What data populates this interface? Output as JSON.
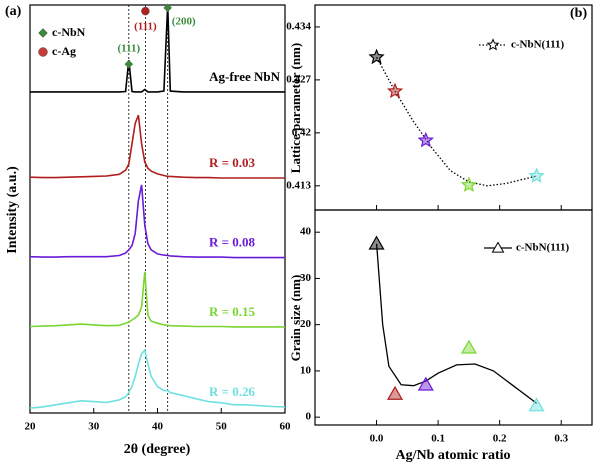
{
  "chart_data": [
    {
      "type": "line",
      "panel_label": "(a)",
      "xlabel": "2θ (degree)",
      "ylabel": "Intensity (a.u.)",
      "xlim": [
        20,
        60
      ],
      "xticks": [
        20,
        30,
        40,
        50,
        60
      ],
      "ylim": [
        0,
        100
      ],
      "x": [
        20,
        22,
        24,
        26,
        28,
        30,
        32,
        34,
        35,
        35.5,
        36,
        36.5,
        37,
        37.5,
        38,
        38.5,
        39,
        40,
        41,
        41.6,
        42,
        44,
        46,
        48,
        50,
        52,
        54,
        56,
        58,
        60
      ],
      "series": [
        {
          "name": "Ag-free NbN",
          "color": "#000000",
          "values": [
            78.7,
            78.7,
            78.7,
            78.7,
            78.7,
            78.7,
            78.7,
            78.7,
            78.8,
            86.5,
            78.8,
            78.7,
            78.7,
            78.7,
            79.3,
            78.7,
            78.7,
            78.7,
            78.9,
            100,
            78.9,
            78.7,
            78.7,
            78.7,
            78.7,
            78.7,
            78.7,
            78.7,
            78.7,
            78.7
          ]
        },
        {
          "name": "R = 0.03",
          "color": "#b01e1e",
          "values": [
            57.8,
            57.7,
            57.7,
            57.8,
            57.9,
            58,
            58.1,
            58.5,
            59.5,
            61,
            66,
            71,
            73,
            66,
            61.5,
            60,
            59.3,
            58.6,
            58.2,
            58,
            58,
            57.8,
            57.7,
            57.7,
            57.6,
            57.6,
            57.6,
            57.6,
            57.6,
            57.6
          ]
        },
        {
          "name": "R = 0.08",
          "color": "#6a1bd8",
          "values": [
            38.3,
            38.2,
            38.2,
            38.3,
            38.3,
            38.3,
            38.3,
            38.6,
            39.2,
            40,
            41,
            44,
            52,
            55.9,
            46,
            41.5,
            40,
            39,
            38.7,
            38.6,
            38.5,
            38.3,
            38.2,
            38.2,
            38.2,
            38.1,
            38.1,
            38.1,
            38.1,
            38.1
          ]
        },
        {
          "name": "R = 0.15",
          "color": "#7ad630",
          "values": [
            21.2,
            21.3,
            21.4,
            21.6,
            21.8,
            21.6,
            21.4,
            21.5,
            22,
            22.3,
            22.8,
            23.3,
            24,
            26,
            34.6,
            24,
            22.5,
            22,
            21.6,
            21.5,
            21.4,
            21.3,
            21.2,
            21.2,
            21.2,
            21.1,
            21.1,
            21.1,
            21.1,
            21.1
          ]
        },
        {
          "name": "R = 0.26",
          "color": "#6fe0e0",
          "values": [
            1.2,
            1.5,
            2,
            2.5,
            3,
            2.8,
            2.6,
            3.2,
            4,
            5,
            6.5,
            9,
            12,
            14.5,
            15.4,
            12,
            9,
            6.5,
            5.5,
            5.5,
            5,
            4.3,
            3.5,
            2.8,
            2.5,
            2,
            2,
            1.8,
            1.6,
            1.5
          ]
        }
      ],
      "reference_lines": [
        35.5,
        38.1,
        41.6
      ],
      "annotations": [
        {
          "text": "(111)",
          "x": 35.5,
          "y": 85.5,
          "color": "#3a8a3a",
          "marker": "diamond"
        },
        {
          "text": "(111)",
          "x": 38.1,
          "y": 98.5,
          "color": "#b02020",
          "marker": "circle"
        },
        {
          "text": "(200)",
          "x": 41.6,
          "y": 99.3,
          "color": "#3a8a3a",
          "marker": "diamond"
        }
      ],
      "phase_legend": [
        {
          "name": "c-NbN",
          "color": "#3a8a3a",
          "marker": "diamond"
        },
        {
          "name": "c-Ag",
          "color": "#c83a3a",
          "marker": "circle"
        }
      ]
    },
    {
      "type": "scatter",
      "panel_label": "(b)",
      "ylabel": "Lattice parameter (nm)",
      "xlim": [
        -0.1,
        0.35
      ],
      "xticks": [
        {
          "value": 0,
          "label": "0.0"
        },
        0.1,
        0.2,
        0.3
      ],
      "ylim": [
        0.4098,
        0.4369
      ],
      "yticks": [
        0.413,
        0.42,
        0.427,
        0.434
      ],
      "series": [
        {
          "name": "c-NbN(111)",
          "marker": "star",
          "line": "dotted",
          "color": "#000000",
          "x": [
            0,
            0.03,
            0.08,
            0.15,
            0.26
          ],
          "values": [
            0.43,
            0.4255,
            0.419,
            0.4131,
            0.4143
          ],
          "point_colors": [
            "#000000",
            "#b01e1e",
            "#6a1bd8",
            "#7ad630",
            "#6fe0e0"
          ],
          "fit": {
            "x": [
              0,
              0.03,
              0.06,
              0.09,
              0.12,
              0.15,
              0.18,
              0.21,
              0.24,
              0.26
            ],
            "values": [
              0.43,
              0.4255,
              0.4215,
              0.418,
              0.415,
              0.4135,
              0.413,
              0.4133,
              0.4139,
              0.4143
            ]
          }
        }
      ]
    },
    {
      "type": "scatter",
      "xlabel": "Ag/Nb atomic ratio",
      "ylabel": "Grain size (nm)",
      "xlim": [
        -0.1,
        0.35
      ],
      "xticks": [
        {
          "value": 0,
          "label": "0.0"
        },
        0.1,
        0.2,
        0.3
      ],
      "ylim": [
        -1.7,
        44.8
      ],
      "yticks": [
        0,
        10,
        20,
        30,
        40
      ],
      "series": [
        {
          "name": "c-NbN(111)",
          "marker": "triangle",
          "line": "solid",
          "color": "#000000",
          "x": [
            0,
            0.03,
            0.08,
            0.15,
            0.26
          ],
          "values": [
            37.5,
            5,
            7,
            15,
            2.5
          ],
          "point_colors": [
            "#000000",
            "#b01e1e",
            "#6a1bd8",
            "#7ad630",
            "#6fe0e0"
          ],
          "fit": {
            "x": [
              0,
              0.01,
              0.02,
              0.04,
              0.06,
              0.08,
              0.1,
              0.13,
              0.16,
              0.19,
              0.22,
              0.25,
              0.26
            ],
            "values": [
              37.5,
              20,
              11,
              7,
              6.8,
              7.8,
              9.5,
              11.3,
              11.5,
              10,
              7,
              4,
              3
            ]
          }
        }
      ]
    }
  ]
}
